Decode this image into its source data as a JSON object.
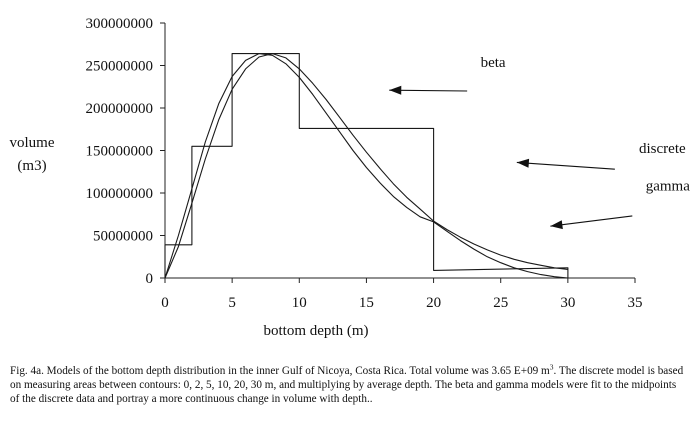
{
  "chart_data": {
    "type": "line",
    "xlabel": "bottom depth (m)",
    "ylabel": [
      "volume",
      "(m3)"
    ],
    "xlim": [
      0,
      35
    ],
    "ylim": [
      0,
      300000000
    ],
    "xticks": [
      "0",
      "5",
      "10",
      "15",
      "20",
      "25",
      "30",
      "35"
    ],
    "yticks": [
      "0",
      "50000000",
      "100000000",
      "150000000",
      "200000000",
      "250000000",
      "300000000"
    ],
    "grid": false,
    "series": [
      {
        "name": "discrete",
        "kind": "step",
        "points": [
          [
            0,
            0
          ],
          [
            0,
            39000000
          ],
          [
            2,
            39000000
          ],
          [
            2,
            155000000
          ],
          [
            5,
            155000000
          ],
          [
            5,
            264000000
          ],
          [
            10,
            264000000
          ],
          [
            10,
            176000000
          ],
          [
            20,
            176000000
          ],
          [
            20,
            9000000
          ],
          [
            30,
            12000000
          ],
          [
            30,
            0
          ]
        ]
      },
      {
        "name": "beta",
        "kind": "curve",
        "points": [
          [
            0,
            0
          ],
          [
            1,
            50000000
          ],
          [
            2,
            105000000
          ],
          [
            3,
            160000000
          ],
          [
            4,
            205000000
          ],
          [
            5,
            237000000
          ],
          [
            6,
            256000000
          ],
          [
            7,
            264000000
          ],
          [
            8,
            262000000
          ],
          [
            9,
            252000000
          ],
          [
            10,
            236000000
          ],
          [
            11,
            216000000
          ],
          [
            12,
            194000000
          ],
          [
            13,
            172000000
          ],
          [
            14,
            150000000
          ],
          [
            15,
            130000000
          ],
          [
            16,
            112000000
          ],
          [
            17,
            96000000
          ],
          [
            18,
            83000000
          ],
          [
            19,
            72000000
          ],
          [
            20,
            66000000
          ],
          [
            21,
            55000000
          ],
          [
            22,
            44000000
          ],
          [
            23,
            34000000
          ],
          [
            24,
            25000000
          ],
          [
            25,
            18000000
          ],
          [
            26,
            12000000
          ],
          [
            27,
            7500000
          ],
          [
            28,
            4000000
          ],
          [
            29,
            1500000
          ],
          [
            30,
            0
          ]
        ]
      },
      {
        "name": "gamma",
        "kind": "curve",
        "points": [
          [
            0,
            0
          ],
          [
            1,
            37000000
          ],
          [
            2,
            88000000
          ],
          [
            3,
            140000000
          ],
          [
            4,
            186000000
          ],
          [
            5,
            222000000
          ],
          [
            6,
            246000000
          ],
          [
            7,
            260000000
          ],
          [
            8,
            264000000
          ],
          [
            9,
            259000000
          ],
          [
            10,
            246000000
          ],
          [
            11,
            229000000
          ],
          [
            12,
            210000000
          ],
          [
            13,
            189000000
          ],
          [
            14,
            168000000
          ],
          [
            15,
            148000000
          ],
          [
            16,
            129000000
          ],
          [
            17,
            111000000
          ],
          [
            18,
            95000000
          ],
          [
            19,
            81000000
          ],
          [
            20,
            67000000
          ],
          [
            21,
            57000000
          ],
          [
            22,
            48000000
          ],
          [
            23,
            40000000
          ],
          [
            24,
            33000000
          ],
          [
            25,
            27000000
          ],
          [
            26,
            22000000
          ],
          [
            27,
            18000000
          ],
          [
            28,
            15000000
          ],
          [
            29,
            12000000
          ],
          [
            30,
            10000000
          ]
        ]
      }
    ],
    "annotations": [
      {
        "text": "beta",
        "arrow_from": [
          22.5,
          220000000
        ],
        "arrow_to": [
          16.7,
          221000000
        ],
        "text_at": [
          23.5,
          248000000
        ]
      },
      {
        "text": "discrete",
        "arrow_from": [
          33.5,
          128000000
        ],
        "arrow_to": [
          26.2,
          136000000
        ],
        "text_at": [
          35.3,
          147000000
        ]
      },
      {
        "text": "gamma",
        "arrow_from": [
          34.8,
          73000000
        ],
        "arrow_to": [
          28.7,
          61000000
        ],
        "text_at": [
          35.8,
          103000000
        ]
      }
    ]
  },
  "caption": {
    "part1": "Fig. 4a. Models of the bottom depth distribution in the inner Gulf of Nicoya, Costa Rica. Total volume was 3.65 E+09 m",
    "sup": "3",
    "part2": ". The discrete model is based on measuring areas between contours: 0, 2, 5, 10, 20, 30 m, and multiplying by average depth. The beta and gamma models were fit to the midpoints of the discrete data and portray a more continuous change in volume with depth.."
  }
}
